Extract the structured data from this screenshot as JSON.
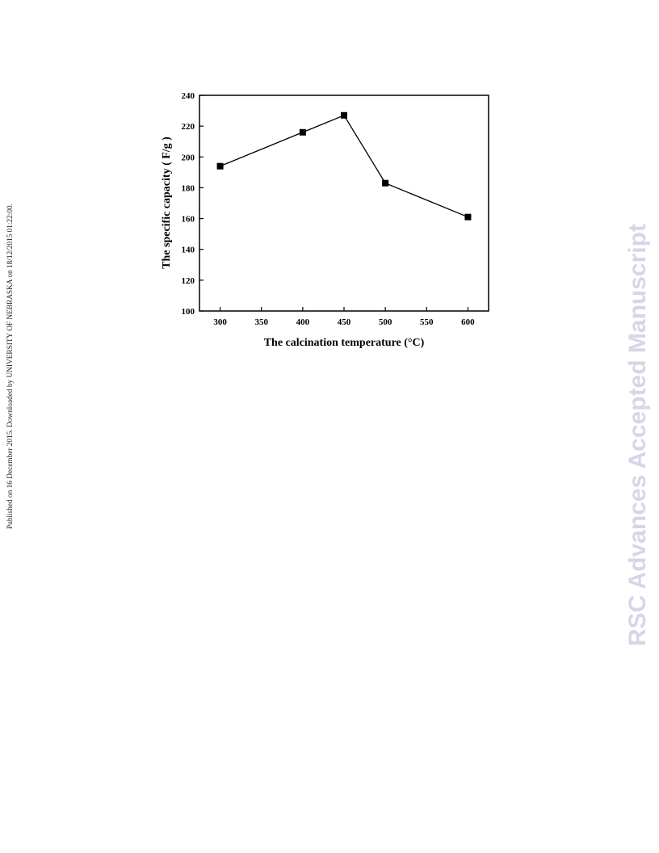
{
  "watermark_left": "Published on 16 December 2015. Downloaded by UNIVERSITY OF NEBRASKA on 18/12/2015 01:22:00.",
  "watermark_right": "RSC Advances Accepted Manuscript",
  "chart_data": {
    "type": "line",
    "title": "",
    "xlabel": "The calcination temperature (°C)",
    "ylabel": "The specific capacity ( F/g )",
    "xlim": [
      275,
      625
    ],
    "ylim": [
      100,
      240
    ],
    "xticks": [
      300,
      350,
      400,
      450,
      500,
      550,
      600
    ],
    "yticks": [
      100,
      120,
      140,
      160,
      180,
      200,
      220,
      240
    ],
    "grid": false,
    "marker": "square",
    "line_color": "#000000",
    "series": [
      {
        "x": [
          300,
          400,
          450,
          500,
          600
        ],
        "y": [
          194,
          216,
          227,
          183,
          161
        ]
      }
    ]
  }
}
